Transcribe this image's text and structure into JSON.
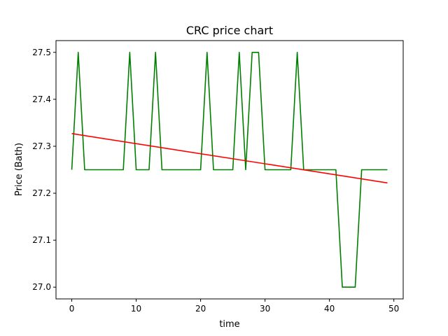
{
  "chart_data": {
    "type": "line",
    "title": "CRC price chart",
    "xlabel": "time",
    "ylabel": "Price (Bath)",
    "xlim": [
      -2.45,
      51.45
    ],
    "ylim": [
      26.975,
      27.525
    ],
    "xticks": [
      0,
      10,
      20,
      30,
      40,
      50
    ],
    "xtick_labels": [
      "0",
      "10",
      "20",
      "30",
      "40",
      "50"
    ],
    "yticks": [
      27.0,
      27.1,
      27.2,
      27.3,
      27.4,
      27.5
    ],
    "ytick_labels": [
      "27.0",
      "27.1",
      "27.2",
      "27.3",
      "27.4",
      "27.5"
    ],
    "grid": false,
    "series": [
      {
        "color": "#008000",
        "x": [
          0,
          1,
          2,
          3,
          4,
          5,
          6,
          7,
          8,
          9,
          10,
          11,
          12,
          13,
          14,
          15,
          16,
          17,
          18,
          19,
          20,
          21,
          22,
          23,
          24,
          25,
          26,
          27,
          28,
          29,
          30,
          31,
          32,
          33,
          34,
          35,
          36,
          37,
          38,
          39,
          40,
          41,
          42,
          43,
          44,
          45,
          46,
          47,
          48,
          49
        ],
        "y": [
          27.25,
          27.5,
          27.25,
          27.25,
          27.25,
          27.25,
          27.25,
          27.25,
          27.25,
          27.5,
          27.25,
          27.25,
          27.25,
          27.5,
          27.25,
          27.25,
          27.25,
          27.25,
          27.25,
          27.25,
          27.25,
          27.5,
          27.25,
          27.25,
          27.25,
          27.25,
          27.5,
          27.25,
          27.5,
          27.5,
          27.25,
          27.25,
          27.25,
          27.25,
          27.25,
          27.5,
          27.25,
          27.25,
          27.25,
          27.25,
          27.25,
          27.25,
          27.0,
          27.0,
          27.0,
          27.25,
          27.25,
          27.25,
          27.25,
          27.25
        ]
      },
      {
        "color": "#ff0000",
        "x": [
          0,
          49
        ],
        "y": [
          27.327,
          27.222
        ]
      }
    ]
  }
}
